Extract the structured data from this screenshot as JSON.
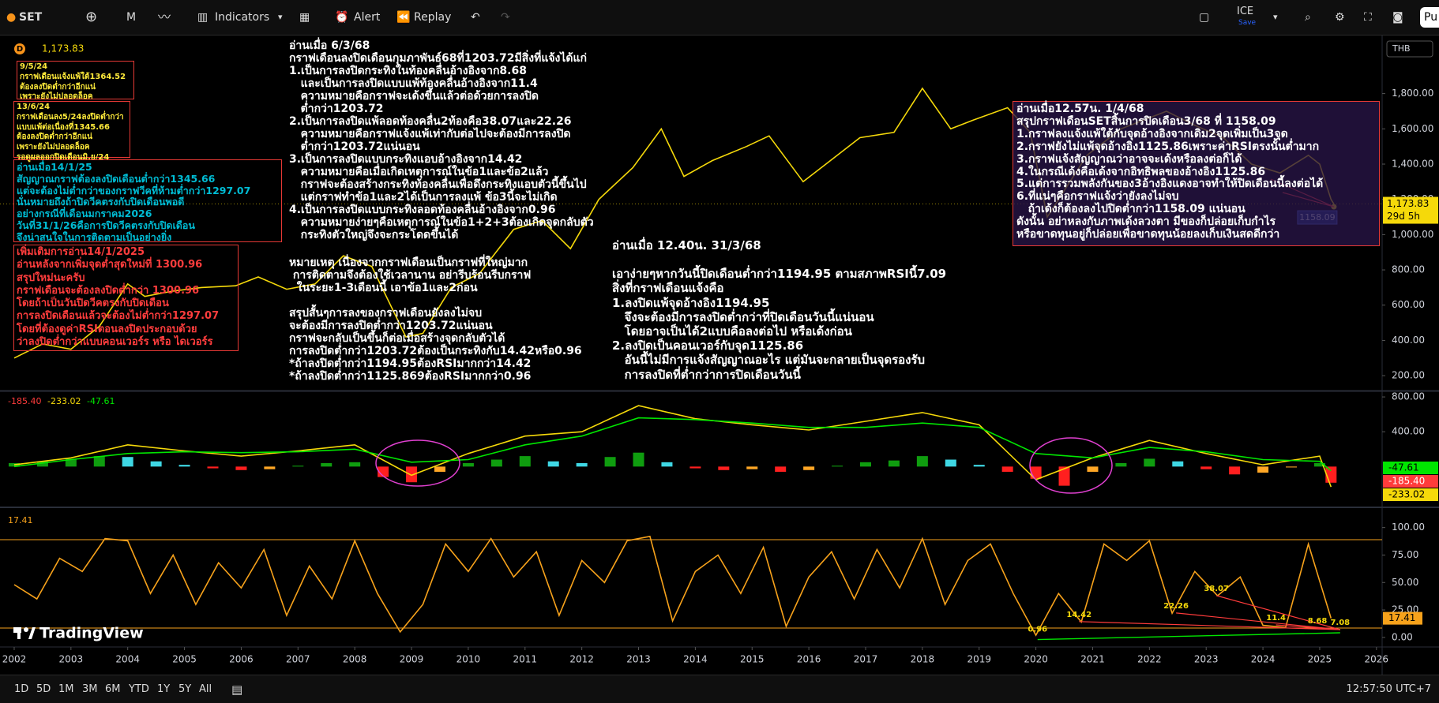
{
  "toolbar": {
    "symbol": "SET",
    "interval": "M",
    "indicators": "Indicators",
    "alert": "Alert",
    "replay": "Replay",
    "layout_name": "ICE",
    "save": "Save",
    "publish": "Pu"
  },
  "bottom_bar": {
    "ranges": [
      "1D",
      "5D",
      "1M",
      "3M",
      "6M",
      "YTD",
      "1Y",
      "5Y",
      "All"
    ],
    "clock": "12:57:50 UTC+7"
  },
  "logo": "TradingView",
  "notes": [
    {
      "lines": [
        "9/5/24",
        "กราฟเดือนแจ้งแพ้ใต้1364.52",
        "ต้องลงปิดต่ำกว่าอีกแน่",
        "เพราะยังไม่ปลอดล็อค"
      ]
    },
    {
      "lines": [
        "13/6/24",
        "กราฟเดือนลง5/24ลงปิดต่ำกว่า",
        "แบบแพ้ต่อเนื่องที่1345.66",
        "ต้องลงปิดต่ำกว่าอีกแน่",
        "เพราะยังไม่ปลอดล็อค",
        "รอดูผลออกปิดเดือนมิ.ย/24"
      ]
    },
    {
      "lines": [
        "อ่านเมื่อ14/1/25",
        "สัญญาณกราฟต้องลงปิดเดือนต่ำกว่า1345.66",
        "แต่จะต้องไม่ต่ำกว่าของกราฟวีคที่ห้ามต่ำกว่า1297.07",
        "นั่นหมายถึงถ้าปิดวีคตรงกับปิดเดือนพอดี",
        "อย่างกรณีที่เดือนมกราคม2026",
        "วันที่31/1/26คือการปิดวีคตรงกับปิดเดือน",
        "จึงน่าสนใจในการติดตามเป็นอย่างยิ่ง"
      ]
    },
    {
      "lines": [
        "เพิ่มเติมการอ่าน14/1/2025",
        "อ่านหลังจากเพิ่มจุดต่ำสุดใหม่ที่ 1300.96",
        "สรุปใหม่นะครับ",
        "กราฟเดือนจะต้องลงปิดต่ำกว่า 1300.96",
        "โดยถ้าเป็นวันปิดวีคตรงกับปิดเดือน",
        "การลงปิดเดือนแล้วจะต้องไม่ต่ำกว่า1297.07",
        "โดยที่ต้องดูค่าRSIตอนลงปิดประกอบด้วย",
        "ว่าลงปิดต่ำกว่าแบบคอนเวอร์ร หรือ ไดเวอร์ร"
      ]
    },
    {
      "lines": [
        "อ่านเมื่อ 6/3/68",
        "กราฟเดือนลงปิดเดือนกุมภาพันธ์68ที่1203.72มีสิ่งที่แจ้งได้แก่",
        "1.เป็นการลงปิดกระทิงในท้องคลื่นอ้างอิงจาก8.68",
        "   และเป็นการลงปิดแบบแพ้ท้องคลื่นอ้างอิงจาก11.4",
        "   ความหมายคือกราฟจะเด้งขึ้นแล้วต่อด้วยการลงปิด",
        "   ต่ำกว่า1203.72",
        "2.เป็นการลงปิดแพ้ลอดท้องคลื่น2ท้องคือ38.07และ22.26",
        "   ความหมายคือกราฟแจ้งแพ้เท่ากับต่อไปจะต้องมีการลงปิด",
        "   ต่ำกว่า1203.72แน่นอน",
        "3.เป็นการลงปิดแบบกระทิงแอบอ้างอิงจาก14.42",
        "   ความหมายคือเมื่อเกิดเหตุการณ์ในข้อ1และข้อ2แล้ว",
        "   กราฟจะต้องสร้างกระทิงท้องคลื่นเพื่อดึงกระทิงแอบตัวนี้ขึ้นไป",
        "   แต่กราฟทำข้อ1และ2ได้เป็นการลงแพ้ ข้อ3นี้จะไม่เกิด",
        "4.เป็นการลงปิดแบบกระทิงลอดท้องคลื่นอ้างอิงจาก0.96",
        "   ความหมายง่ายๆคือเหตุการณ์ในข้อ1+2+3ต้องเกิดจุดกลับตัว",
        "   กระทิงตัวใหญ่จึงจะกระโดดขึ้นได้"
      ]
    },
    {
      "lines": [
        "หมายเหตุ เนื่องจากกราฟเดือนเป็นกราฟที่ใหญ่มาก",
        " การติดตามจึงต้องใช้เวลานาน อย่ารีบร้อนรีบกราฟ",
        "  ในระยะ1-3เดือนนี้ เอาข้อ1และ2ก่อน"
      ]
    },
    {
      "lines": [
        "สรุปสั้นๆการลงของกราฟเดือนยังลงไม่จบ",
        "จะต้องมีการลงปิดต่ำกว่า1203.72แน่นอน",
        "กราฟจะกลับเป็นขึ้นก็ต่อเมื่อสร้างจุดกลับตัวได้",
        "การลงปิดต่ำกว่า1203.72ต้องเป็นกระทิงกับ14.42หรือ0.96",
        "*ถ้าลงปิดต่ำกว่า1194.95ต้องRSIมากกว่า14.42",
        "*ถ้าลงปิดต่ำกว่า1125.869ต้องRSIมากกว่า0.96"
      ]
    },
    {
      "lines": [
        "อ่านเมื่อ 12.40น. 31/3/68",
        "เอาง่ายๆหากวันนี้ปิดเดือนต่ำกว่า1194.95 ตามสภาพRSIนี้7.09",
        "สิ่งที่กราฟเดือนแจ้งคือ",
        "1.ลงปิดแพ้จุดอ้างอิง1194.95",
        "   จึงจะต้องมีการลงปิดต่ำกว่าที่ปิดเดือนวันนี้แน่นอน",
        "   โดยอาจเป็นได้2แบบคือลงต่อไป หรือเด้งก่อน",
        "2.ลงปิดเป็นคอนเวอร์กับจุด1125.86",
        "   อันนี้ไม่มีการแจ้งสัญญาณอะไร แต่มันจะกลายเป็นจุดรองรับ",
        "   การลงปิดที่ต่ำกว่าการปิดเดือนวันนี้"
      ]
    },
    {
      "lines": [
        "อ่านเมื่อ12.57น. 1/4/68",
        "สรุปกราฟเดือนSETสิ้นการปิดเดือน3/68 ที่ 1158.09",
        "1.กราฟลงแจ้งแพ้ใต้กับจุดอ้างอิงจากเดิม2จุดเพิ่มเป็น3จุด",
        "2.กราฟยังไม่แพ้จุดอ้างอิง1125.86เพราะค่าRSIตรงนั้นต่ำมาก",
        "3.กราฟแจ้งสัญญาณว่าอาจจะเด้งหรือลงต่อก็ได้",
        "4.ในกรณีเด้งคือเด้งจากอิทธิพลของอ้างอิง1125.86",
        "5.แต่การรวมพลังกันของ3อ้างอิงแดงอาจทำให้ปิดเดือนนี้ลงต่อได้",
        "6.ที่แน่ๆคือกราฟแจ้งว่ายังลงไม่จบ",
        "   ถ้าเด้งก็ต้องลงไปปิดต่ำกว่า1158.09 แน่นอน",
        "ดังนั้น อย่าหลงกับภาพเด้งลวงตา มีของก็ปล่อยเก็บกำไร",
        "หรือขาดทุนอยู่ก็ปล่อยเพื่อขาดทุนน้อยลงเก็บเงินสดดีกว่า"
      ]
    }
  ],
  "chart_data": [
    {
      "type": "line",
      "legend": {
        "symbol": "D",
        "last": {
          "value": 1173.83,
          "label": "1,173.83"
        }
      },
      "currency": "THB",
      "countdown": "29d 5h",
      "marker": {
        "x": 2025.25,
        "value": 1158.09
      },
      "x": [
        2002.0,
        2002.5,
        2003.0,
        2003.5,
        2004.0,
        2004.3,
        2004.8,
        2005.3,
        2005.9,
        2006.3,
        2006.8,
        2007.3,
        2007.8,
        2008.3,
        2008.9,
        2009.2,
        2009.7,
        2010.2,
        2010.8,
        2011.3,
        2011.8,
        2012.3,
        2012.9,
        2013.4,
        2013.8,
        2014.3,
        2014.9,
        2015.3,
        2015.9,
        2016.3,
        2016.9,
        2017.5,
        2018.0,
        2018.5,
        2018.9,
        2019.5,
        2019.9,
        2020.2,
        2020.6,
        2020.9,
        2021.5,
        2021.9,
        2022.3,
        2022.8,
        2023.3,
        2023.8,
        2024.3,
        2024.8,
        2025.0,
        2025.2,
        2025.25
      ],
      "series": [
        {
          "color": "#f5d90a",
          "values": [
            300,
            380,
            350,
            480,
            720,
            650,
            680,
            700,
            710,
            760,
            690,
            720,
            880,
            820,
            420,
            440,
            700,
            780,
            1030,
            1080,
            920,
            1200,
            1380,
            1600,
            1330,
            1420,
            1500,
            1560,
            1300,
            1400,
            1550,
            1580,
            1830,
            1600,
            1650,
            1720,
            1580,
            1100,
            1300,
            1450,
            1600,
            1650,
            1700,
            1620,
            1550,
            1400,
            1350,
            1450,
            1400,
            1200,
            1173.83
          ]
        }
      ],
      "xlim": [
        2001.75,
        2026.1
      ],
      "ylim": [
        120,
        2125
      ],
      "yticks": [
        {
          "value": 200,
          "label": "200.00"
        },
        {
          "value": 400,
          "label": "400.00"
        },
        {
          "value": 600,
          "label": "600.00"
        },
        {
          "value": 800,
          "label": "800.00"
        },
        {
          "value": 1000,
          "label": "1,000.00"
        },
        {
          "value": 1200,
          "label": "1,200.00"
        },
        {
          "value": 1400,
          "label": "1,400.00"
        },
        {
          "value": 1600,
          "label": "1,600.00"
        },
        {
          "value": 1800,
          "label": "1,800.00"
        }
      ],
      "grid": false
    },
    {
      "type": "macd",
      "legend_values": [
        {
          "value": -185.4,
          "label": "-185.40"
        },
        -233.02,
        -47.61
      ],
      "legend_colors": [
        "#ff3b3b",
        "#f5d90a",
        "#00e600"
      ],
      "x": [
        2002,
        2003,
        2004,
        2005,
        2006,
        2007,
        2008,
        2009,
        2010,
        2011,
        2012,
        2013,
        2014,
        2015,
        2016,
        2017,
        2018,
        2019,
        2020,
        2021,
        2022,
        2023,
        2024,
        2025,
        2025.2
      ],
      "series": [
        {
          "color": "#f5d90a",
          "values": [
            20,
            100,
            250,
            180,
            120,
            180,
            250,
            -100,
            150,
            350,
            400,
            700,
            550,
            480,
            420,
            520,
            620,
            480,
            -150,
            100,
            300,
            150,
            20,
            120,
            -233.02
          ]
        },
        {
          "color": "#00e600",
          "values": [
            0,
            80,
            150,
            170,
            160,
            170,
            200,
            50,
            80,
            250,
            350,
            560,
            540,
            500,
            450,
            450,
            500,
            450,
            150,
            100,
            220,
            170,
            80,
            60,
            -47.61
          ]
        }
      ],
      "histogram": {
        "x": [
          2002.0,
          2002.5,
          2003.0,
          2003.5,
          2004.0,
          2004.5,
          2005.0,
          2005.5,
          2006.0,
          2006.5,
          2007.0,
          2007.5,
          2008.0,
          2008.5,
          2009.0,
          2009.5,
          2010.0,
          2010.5,
          2011.0,
          2011.5,
          2012.0,
          2012.5,
          2013.0,
          2013.5,
          2014.0,
          2014.5,
          2015.0,
          2015.5,
          2016.0,
          2016.5,
          2017.0,
          2017.5,
          2018.0,
          2018.5,
          2019.0,
          2019.5,
          2020.0,
          2020.5,
          2021.0,
          2021.5,
          2022.0,
          2022.5,
          2023.0,
          2023.5,
          2024.0,
          2024.5,
          2025.0,
          2025.2
        ],
        "values": [
          40,
          60,
          90,
          120,
          110,
          60,
          20,
          -20,
          -40,
          -30,
          10,
          40,
          50,
          -120,
          -180,
          -60,
          40,
          80,
          120,
          60,
          40,
          110,
          160,
          50,
          -20,
          -40,
          -30,
          -60,
          -40,
          10,
          50,
          70,
          120,
          80,
          20,
          -60,
          -140,
          -220,
          -60,
          40,
          90,
          60,
          -30,
          -90,
          -70,
          -10,
          40,
          -185.4
        ],
        "colors": {
          "up_rising": "#0f9d0f",
          "up_falling": "#3fd7e4",
          "down_falling": "#ff1f1f",
          "down_rising": "#ffa726"
        }
      },
      "xlim": [
        2001.75,
        2026.1
      ],
      "ylim": [
        -450,
        855
      ],
      "yticks": [
        {
          "value": 800,
          "label": "800.00"
        },
        {
          "value": 400,
          "label": "400.00"
        }
      ]
    },
    {
      "type": "line",
      "legend_value": 17.41,
      "x": [
        2002.0,
        2002.4,
        2002.8,
        2003.2,
        2003.6,
        2004.0,
        2004.4,
        2004.8,
        2005.2,
        2005.6,
        2006.0,
        2006.4,
        2006.8,
        2007.2,
        2007.6,
        2008.0,
        2008.4,
        2008.8,
        2009.2,
        2009.6,
        2010.0,
        2010.4,
        2010.8,
        2011.2,
        2011.6,
        2012.0,
        2012.4,
        2012.8,
        2013.2,
        2013.6,
        2014.0,
        2014.4,
        2014.8,
        2015.2,
        2015.6,
        2016.0,
        2016.4,
        2016.8,
        2017.2,
        2017.6,
        2018.0,
        2018.4,
        2018.8,
        2019.2,
        2019.6,
        2020.0,
        2020.4,
        2020.8,
        2021.2,
        2021.6,
        2022.0,
        2022.4,
        2022.8,
        2023.2,
        2023.6,
        2024.0,
        2024.4,
        2024.8,
        2025.2
      ],
      "series": [
        {
          "color": "#f7a21b",
          "values": [
            48,
            35,
            72,
            60,
            90,
            88,
            40,
            75,
            30,
            68,
            45,
            80,
            20,
            65,
            35,
            88,
            40,
            5,
            30,
            85,
            60,
            90,
            55,
            78,
            20,
            70,
            50,
            88,
            92,
            15,
            60,
            75,
            40,
            82,
            10,
            55,
            78,
            35,
            80,
            45,
            90,
            30,
            70,
            85,
            40,
            2,
            40,
            14,
            85,
            70,
            88,
            22,
            60,
            38,
            55,
            11,
            9,
            85,
            17.41
          ]
        }
      ],
      "hlines": [
        89,
        8.5
      ],
      "labels": [
        0.96,
        14.42,
        22.26,
        38.07,
        11.4,
        8.68,
        7.08
      ],
      "label_x": [
        2020.03,
        2020.76,
        2022.47,
        2023.18,
        2024.23,
        2024.96,
        2025.36
      ],
      "xlim": [
        2001.75,
        2026.1
      ],
      "ylim": [
        -8,
        117
      ],
      "yticks": [
        {
          "value": 100,
          "label": "100.00"
        },
        {
          "value": 75,
          "label": "75.00"
        },
        {
          "value": 50,
          "label": "50.00"
        },
        {
          "value": 25,
          "label": "25.00"
        },
        {
          "value": 0,
          "label": "0.00"
        }
      ],
      "xticks": [
        2002,
        2003,
        2004,
        2005,
        2006,
        2007,
        2008,
        2009,
        2010,
        2011,
        2012,
        2013,
        2014,
        2015,
        2016,
        2017,
        2018,
        2019,
        2020,
        2021,
        2022,
        2023,
        2024,
        2025,
        2026
      ]
    }
  ]
}
